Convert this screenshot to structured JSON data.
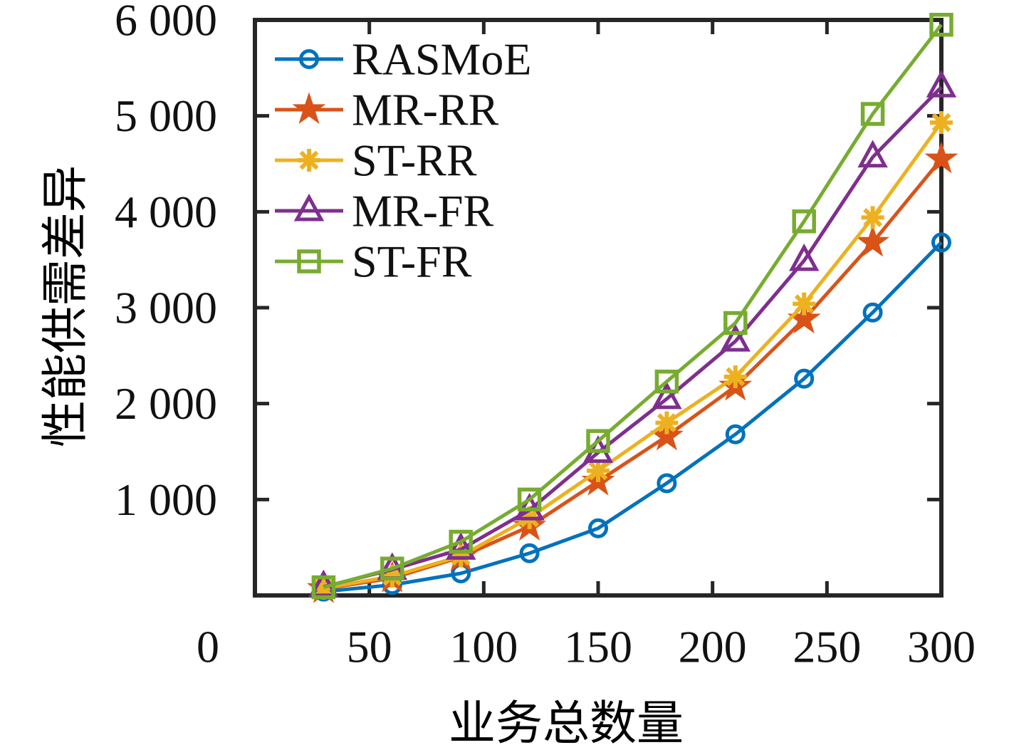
{
  "figure": {
    "background": "#ffffff",
    "axis_color": "#262626",
    "text_color": "#111111"
  },
  "chart_data": {
    "type": "line",
    "title": "",
    "xlabel": "业务总数量",
    "ylabel": "性能供需差异",
    "xlim": [
      0,
      300
    ],
    "ylim": [
      0,
      6000
    ],
    "grid": false,
    "legend_position": "top-left-inside",
    "x_ticks": [
      0,
      50,
      100,
      150,
      200,
      250,
      300
    ],
    "x_tick_labels": [
      "0",
      "50",
      "100",
      "150",
      "200",
      "250",
      "300"
    ],
    "y_ticks": [
      0,
      1000,
      2000,
      3000,
      4000,
      5000,
      6000
    ],
    "y_tick_labels": [
      "",
      "1 000",
      "2 000",
      "3 000",
      "4 000",
      "5 000",
      "6 000"
    ],
    "x": [
      30,
      60,
      90,
      120,
      150,
      180,
      210,
      240,
      270,
      300
    ],
    "series": [
      {
        "name": "RASMoE",
        "marker": "circle",
        "color": "#0072BD",
        "values": [
          40,
          110,
          230,
          440,
          700,
          1170,
          1680,
          2260,
          2950,
          3680
        ]
      },
      {
        "name": "MR-RR",
        "marker": "star",
        "color": "#D95319",
        "values": [
          70,
          180,
          400,
          720,
          1190,
          1660,
          2180,
          2880,
          3680,
          4550
        ]
      },
      {
        "name": "ST-RR",
        "marker": "asterisk",
        "color": "#EDB120",
        "values": [
          75,
          200,
          410,
          810,
          1300,
          1800,
          2280,
          3040,
          3940,
          4930
        ]
      },
      {
        "name": "MR-FR",
        "marker": "triangle",
        "color": "#7E2F8E",
        "values": [
          90,
          270,
          480,
          890,
          1490,
          2050,
          2650,
          3490,
          4570,
          5300
        ]
      },
      {
        "name": "ST-FR",
        "marker": "square",
        "color": "#77AC30",
        "values": [
          85,
          280,
          560,
          1000,
          1610,
          2230,
          2840,
          3900,
          5020,
          5950
        ]
      }
    ]
  }
}
